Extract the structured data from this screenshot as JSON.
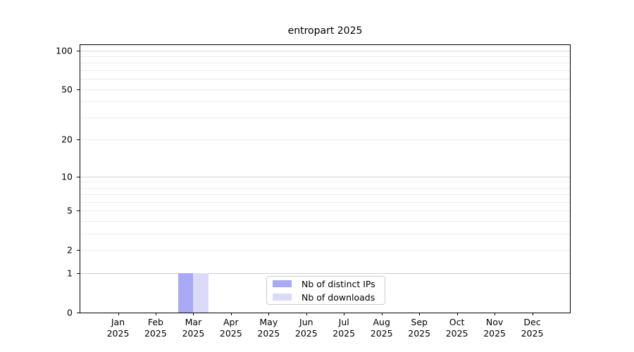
{
  "figure": {
    "title": "entropart 2025"
  },
  "chart_data": {
    "type": "bar",
    "title": "entropart 2025",
    "categories": [
      "Jan 2025",
      "Feb 2025",
      "Mar 2025",
      "Apr 2025",
      "May 2025",
      "Jun 2025",
      "Jul 2025",
      "Aug 2025",
      "Sep 2025",
      "Oct 2025",
      "Nov 2025",
      "Dec 2025"
    ],
    "series": [
      {
        "name": "Nb of distinct IPs",
        "color": "#a9a9f5",
        "values": [
          0,
          0,
          1,
          0,
          0,
          0,
          0,
          0,
          0,
          0,
          0,
          0
        ]
      },
      {
        "name": "Nb of downloads",
        "color": "#dbdbf9",
        "values": [
          0,
          0,
          1,
          0,
          0,
          0,
          0,
          0,
          0,
          0,
          0,
          0
        ]
      }
    ],
    "xlabel": "",
    "ylabel": "",
    "scale": "log1p",
    "ylim": [
      0,
      110
    ],
    "yticks": [
      0,
      1,
      2,
      5,
      10,
      20,
      50,
      100
    ],
    "minor_yticks": [
      3,
      4,
      6,
      7,
      8,
      9,
      30,
      40,
      60,
      70,
      80,
      90
    ],
    "major_grid_values": [
      1,
      10,
      100
    ],
    "grid": true,
    "legend_position": "lower center inside plot",
    "colors": {
      "major_grid": "#d2d2d2",
      "minor_grid": "#ececec",
      "axis": "#000000",
      "text": "#000000",
      "background": "#ffffff"
    }
  }
}
